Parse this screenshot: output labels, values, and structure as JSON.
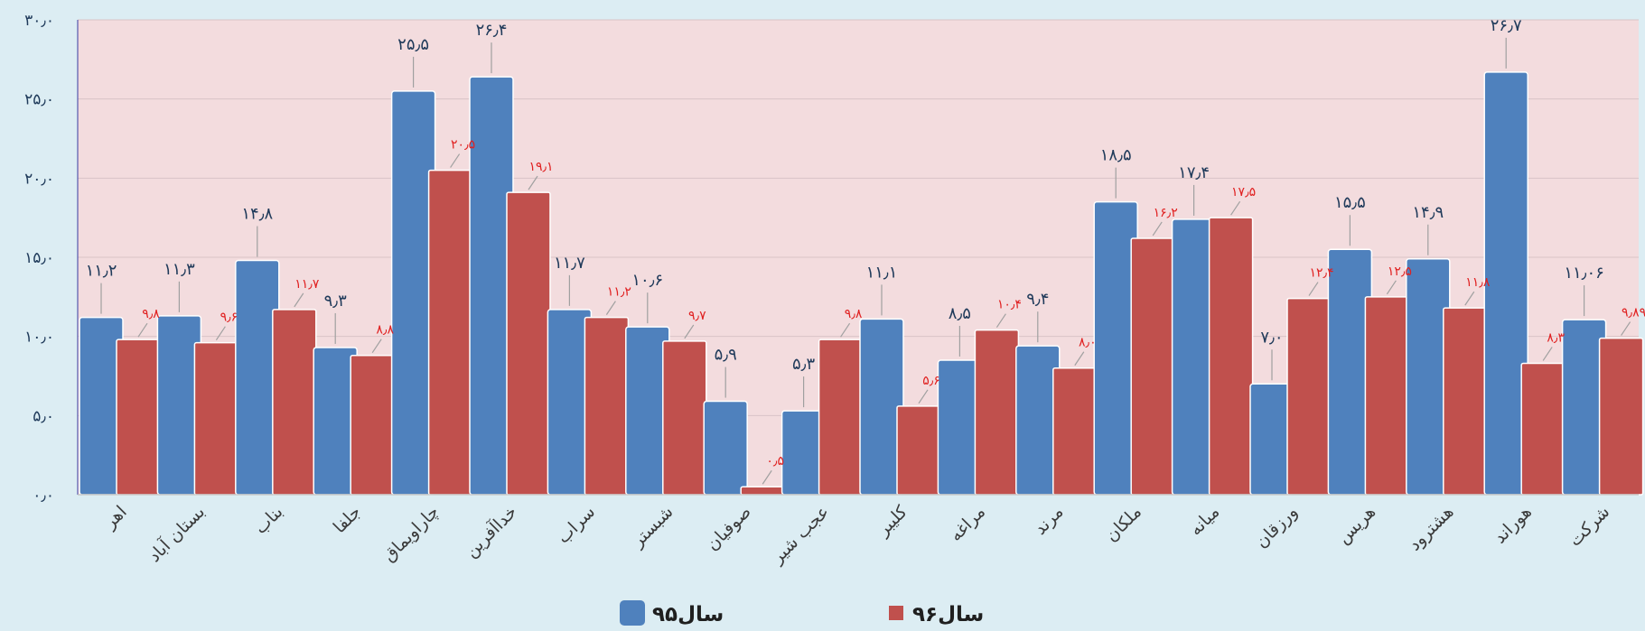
{
  "chart_data": {
    "type": "bar",
    "categories": [
      "اهر",
      "بستان آباد",
      "بناب",
      "جلفا",
      "چاراویماق",
      "خداآفرین",
      "سراب",
      "شبستر",
      "صوفیان",
      "عجب شیر",
      "کلیبر",
      "مراغه",
      "مرند",
      "ملکان",
      "میانه",
      "ورزقان",
      "هریس",
      "هشترود",
      "هوراند",
      "شرکت"
    ],
    "series": [
      {
        "name": "سال۹۵",
        "color": "#4f81bd",
        "values": [
          11.2,
          11.3,
          14.8,
          9.3,
          25.5,
          26.4,
          11.7,
          10.6,
          5.9,
          5.3,
          11.1,
          8.5,
          9.4,
          18.5,
          17.4,
          7.0,
          15.5,
          14.9,
          26.7,
          11.06
        ],
        "labels": [
          "۱۱٫۲",
          "۱۱٫۳",
          "۱۴٫۸",
          "۹٫۳",
          "۲۵٫۵",
          "۲۶٫۴",
          "۱۱٫۷",
          "۱۰٫۶",
          "۵٫۹",
          "۵٫۳",
          "۱۱٫۱",
          "۸٫۵",
          "۹٫۴",
          "۱۸٫۵",
          "۱۷٫۴",
          "۷٫۰",
          "۱۵٫۵",
          "۱۴٫۹",
          "۲۶٫۷",
          "۱۱٫۰۶"
        ]
      },
      {
        "name": "سال۹۶",
        "color": "#c0504d",
        "values": [
          9.8,
          9.6,
          11.7,
          8.8,
          20.5,
          19.1,
          11.2,
          9.7,
          0.5,
          9.8,
          5.6,
          10.4,
          8.0,
          16.2,
          17.5,
          12.4,
          12.5,
          11.8,
          8.3,
          9.89
        ],
        "labels": [
          "۹٫۸",
          "۹٫۶",
          "۱۱٫۷",
          "۸٫۸",
          "۲۰٫۵",
          "۱۹٫۱",
          "۱۱٫۲",
          "۹٫۷",
          "۰٫۵",
          "۹٫۸",
          "۵٫۶",
          "۱۰٫۴",
          "۸٫۰",
          "۱۶٫۲",
          "۱۷٫۵",
          "۱۲٫۴",
          "۱۲٫۵",
          "۱۱٫۸",
          "۸٫۳",
          "۹٫۸۹"
        ]
      }
    ],
    "yticks": [
      0,
      5,
      10,
      15,
      20,
      25,
      30
    ],
    "ytick_labels": [
      "۰٫۰",
      "۵٫۰",
      "۱۰٫۰",
      "۱۵٫۰",
      "۲۰٫۰",
      "۲۵٫۰",
      "۳۰٫۰"
    ],
    "ylim": [
      0,
      30
    ],
    "grid": true,
    "legend": "bottom",
    "title": "",
    "xlabel": "",
    "ylabel": "",
    "plot_background": "#f3dcde",
    "page_background": "#dcedf3"
  }
}
